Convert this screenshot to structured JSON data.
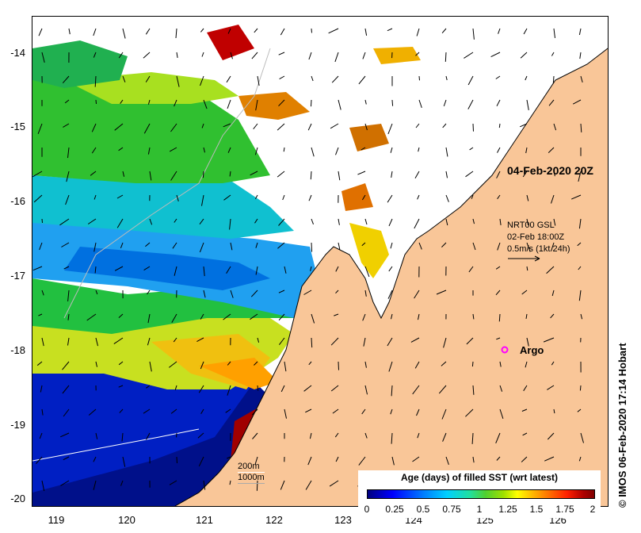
{
  "map": {
    "lat_labels": [
      "-14",
      "-15",
      "-16",
      "-17",
      "-18",
      "-19",
      "-20"
    ],
    "lon_labels": [
      "119",
      "120",
      "121",
      "122",
      "123",
      "124",
      "125",
      "126"
    ],
    "date_label": "04-Feb-2020 20Z",
    "currents": {
      "line1": "NRT00 GSL",
      "line2": "02-Feb 18:00Z",
      "line3": "0.5m/s (1kt 24h)"
    },
    "argo_label": "Argo",
    "depth_legend": {
      "line1": "200m",
      "line2": "1000m"
    },
    "credit": "© IMOS 06-Feb-2020 17:14 Hobart",
    "colorbar": {
      "title": "Age (days) of filled SST (wrt latest)",
      "ticks": [
        "0",
        "0.25",
        "0.5",
        "0.75",
        "1",
        "1.25",
        "1.5",
        "1.75",
        "2"
      ]
    },
    "colors": {
      "land": "#f9c698",
      "argo": "#ff00ff"
    }
  }
}
